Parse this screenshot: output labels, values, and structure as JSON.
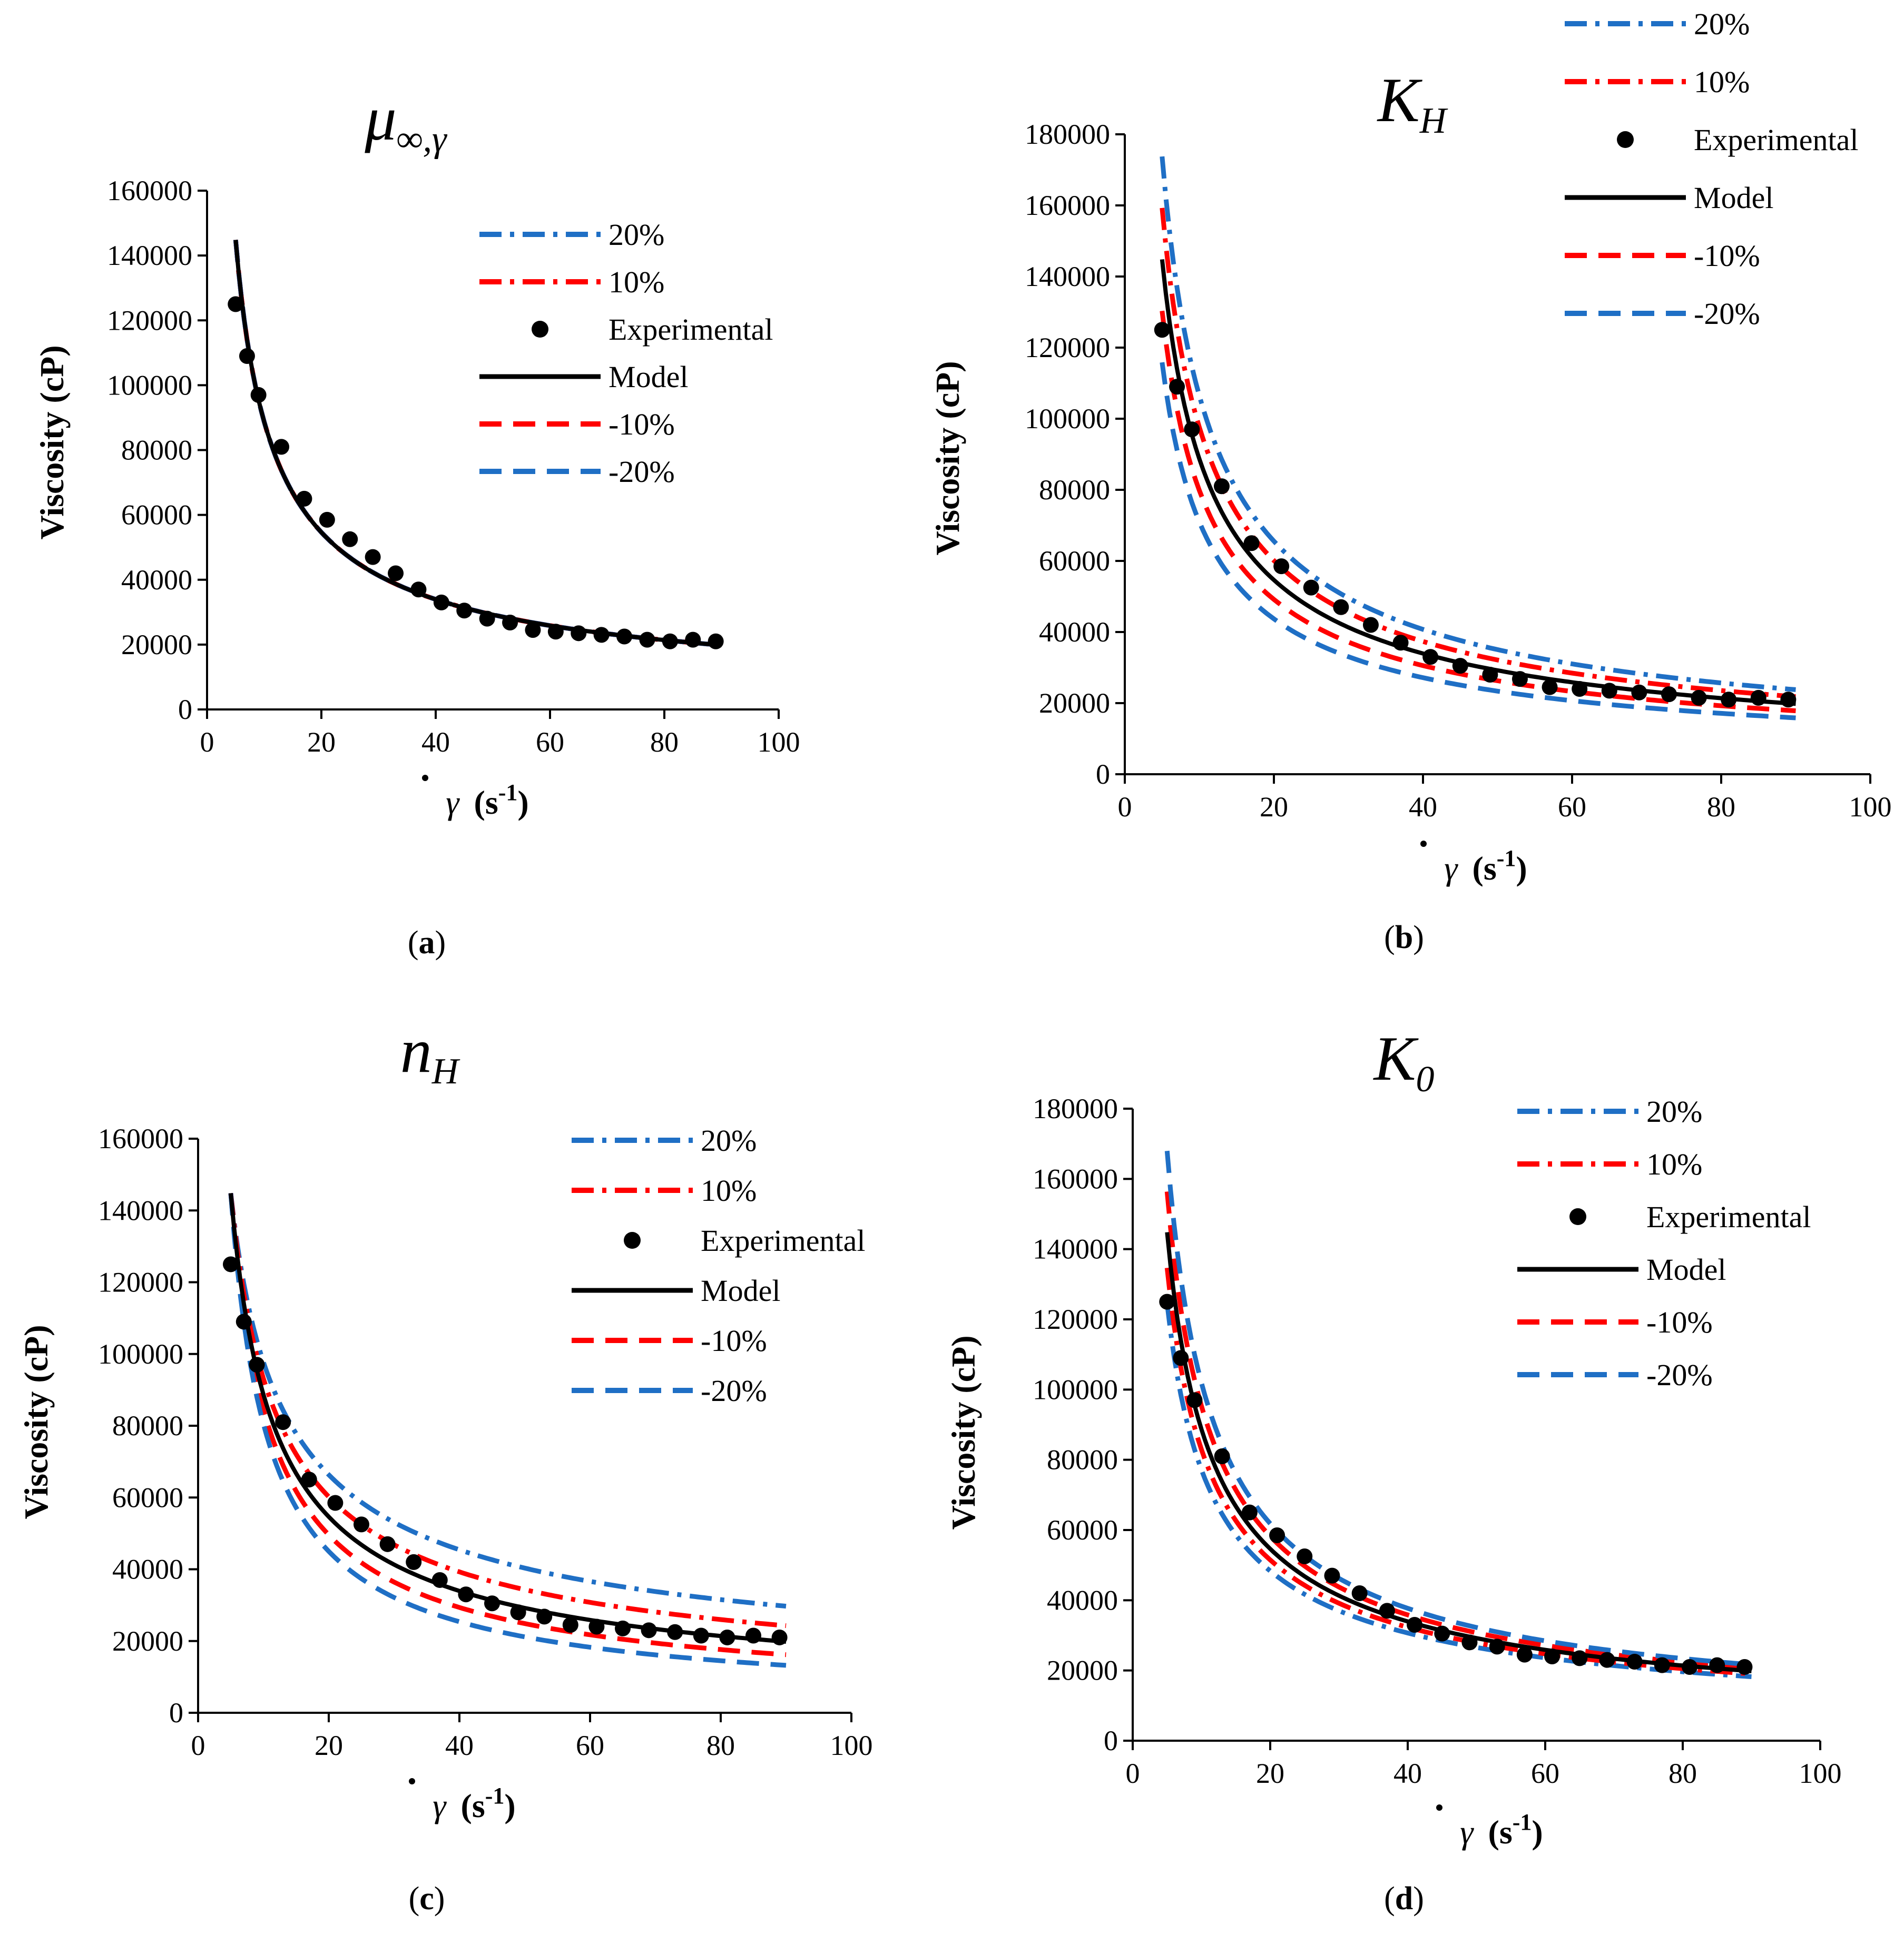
{
  "styles": {
    "plus20": {
      "color": "#1F6FC5",
      "dash": "42 16 8 16"
    },
    "plus10": {
      "color": "#FF0000",
      "dash": "42 16 8 16"
    },
    "model": {
      "color": "#000000",
      "dash": ""
    },
    "minus10": {
      "color": "#FF0000",
      "dash": "42 22"
    },
    "minus20": {
      "color": "#1F6FC5",
      "dash": "42 22"
    },
    "experimental": {
      "color": "#000000",
      "marker": "filled-circle"
    }
  },
  "legend_order": [
    "plus20",
    "plus10",
    "experimental",
    "model",
    "minus10",
    "minus20"
  ],
  "experimental_x": [
    5,
    7,
    9,
    13,
    17,
    21,
    25,
    29,
    33,
    37,
    41,
    45,
    49,
    53,
    57,
    61,
    65,
    69,
    73,
    77,
    81,
    85,
    89
  ],
  "experimental_y": [
    125000,
    109000,
    97000,
    81000,
    65000,
    58500,
    52500,
    47000,
    42000,
    37000,
    33000,
    30500,
    28000,
    26800,
    24500,
    24000,
    23500,
    23000,
    22500,
    21500,
    21000,
    21500,
    21000
  ],
  "chart_data": [
    {
      "type": "line",
      "panel": "(a)",
      "title": "μ∞,γ",
      "title_main": "μ",
      "title_sub": "∞,γ",
      "xlabel": "γ (s-1)",
      "ylabel": "Viscosity (cP)",
      "xlim": [
        0,
        100
      ],
      "ylim": [
        0,
        160000
      ],
      "xticks": [
        0,
        20,
        40,
        60,
        80,
        100
      ],
      "yticks": [
        0,
        20000,
        40000,
        60000,
        80000,
        100000,
        120000,
        140000,
        160000
      ],
      "legend": {
        "position": "top-right",
        "labels": [
          "20%",
          "10%",
          "Experimental",
          "Model",
          "-10%",
          "-20%"
        ]
      },
      "model_curve": {
        "a": 455000,
        "n": 0.72,
        "c": 2000,
        "x_range": [
          5,
          90
        ]
      },
      "variation_factors": {
        "plus20": 1.0,
        "plus10": 1.0,
        "minus10": 1.0,
        "minus20": 1.0
      }
    },
    {
      "type": "line",
      "panel": "(b)",
      "title": "KH",
      "title_main": "K",
      "title_sub": "H",
      "xlabel": "γ (s-1)",
      "ylabel": "Viscosity (cP)",
      "xlim": [
        0,
        100
      ],
      "ylim": [
        0,
        180000
      ],
      "xticks": [
        0,
        20,
        40,
        60,
        80,
        100
      ],
      "yticks": [
        0,
        20000,
        40000,
        60000,
        80000,
        100000,
        120000,
        140000,
        160000,
        180000
      ],
      "legend": {
        "position": "top-right",
        "labels": [
          "20%",
          "10%",
          "Experimental",
          "Model",
          "-10%",
          "-20%"
        ]
      },
      "model_curve": {
        "a": 455000,
        "n": 0.72,
        "c": 2000,
        "x_range": [
          5,
          90
        ]
      },
      "variation_factors": {
        "plus20": 1.2,
        "plus10": 1.1,
        "minus10": 0.9,
        "minus20": 0.8
      }
    },
    {
      "type": "line",
      "panel": "(c)",
      "title": "nH",
      "title_main": "n",
      "title_sub": "H",
      "xlabel": "γ (s-1)",
      "ylabel": "Viscosity (cP)",
      "xlim": [
        0,
        100
      ],
      "ylim": [
        0,
        160000
      ],
      "xticks": [
        0,
        20,
        40,
        60,
        80,
        100
      ],
      "yticks": [
        0,
        20000,
        40000,
        60000,
        80000,
        100000,
        120000,
        140000,
        160000
      ],
      "legend": {
        "position": "top-right",
        "labels": [
          "20%",
          "10%",
          "Experimental",
          "Model",
          "-10%",
          "-20%"
        ]
      },
      "model_curve": {
        "a": 455000,
        "n": 0.72,
        "c": 2000,
        "x_range": [
          5,
          90
        ]
      },
      "variation_exponents": {
        "plus20": 0.14,
        "plus10": 0.07,
        "minus10": -0.07,
        "minus20": -0.14
      }
    },
    {
      "type": "line",
      "panel": "(d)",
      "title": "K0",
      "title_main": "K",
      "title_sub": "0",
      "xlabel": "γ (s-1)",
      "ylabel": "Viscosity (cP)",
      "xlim": [
        0,
        100
      ],
      "ylim": [
        0,
        180000
      ],
      "xticks": [
        0,
        20,
        40,
        60,
        80,
        100
      ],
      "yticks": [
        0,
        20000,
        40000,
        60000,
        80000,
        100000,
        120000,
        140000,
        160000,
        180000
      ],
      "legend": {
        "position": "top-right",
        "labels": [
          "20%",
          "10%",
          "Experimental",
          "Model",
          "-10%",
          "-20%"
        ]
      },
      "model_curve": {
        "a": 455000,
        "n": 0.72,
        "c": 2000,
        "x_range": [
          5,
          90
        ]
      },
      "variation_factors": {
        "plus20": 0.86,
        "plus10": 0.93,
        "minus10": 1.08,
        "minus20": 1.16
      }
    }
  ]
}
